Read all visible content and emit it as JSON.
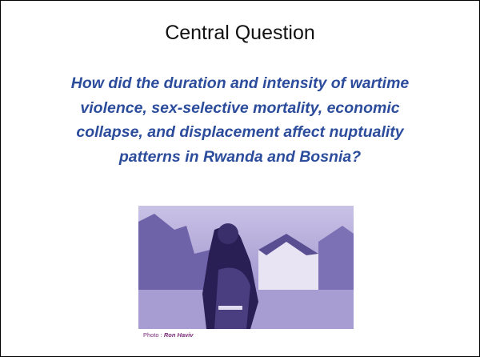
{
  "slide": {
    "title": "Central Question",
    "question_lines": [
      "How did the duration and intensity of wartime",
      "violence, sex-selective mortality, economic",
      "collapse, and displacement affect nuptuality",
      "patterns in Rwanda and Bosnia?"
    ],
    "photo_credit": {
      "prefix": "Photo :",
      "author": "Ron Haviv"
    }
  }
}
